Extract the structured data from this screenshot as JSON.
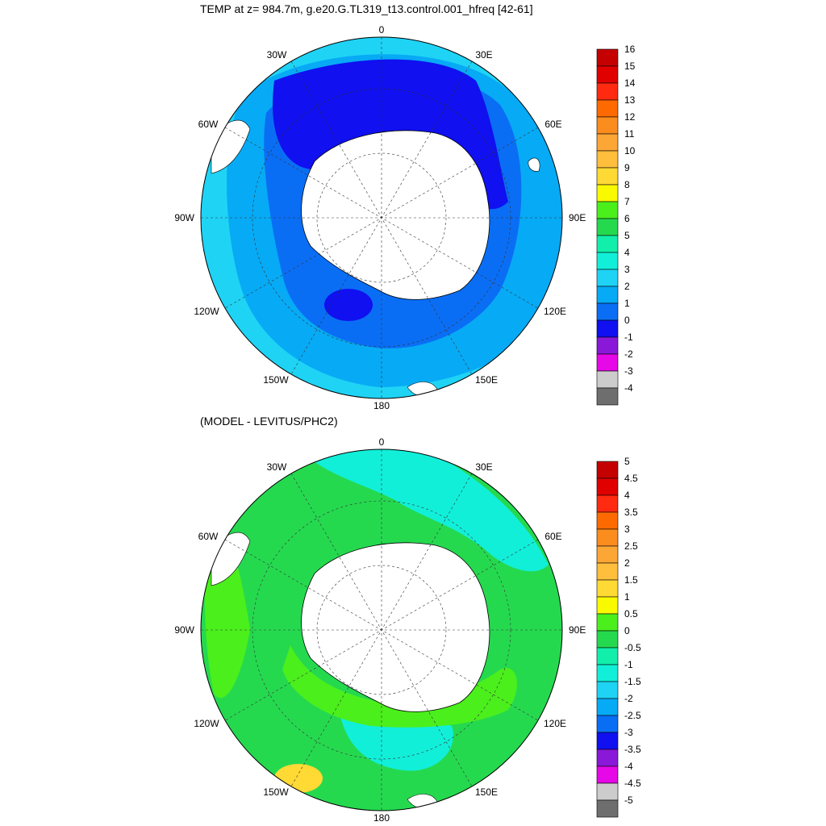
{
  "panels": [
    {
      "title": "TEMP at z= 984.7m, g.e20.G.TL319_t13.control.001_hfreq [42-61]",
      "colorbar": {
        "labels": [
          "16",
          "15",
          "14",
          "13",
          "12",
          "11",
          "10",
          "9",
          "8",
          "7",
          "6",
          "5",
          "4",
          "3",
          "2",
          "1",
          "0",
          "-1",
          "-2",
          "-3",
          "-4"
        ],
        "colors": [
          "#c40000",
          "#e00000",
          "#ff2a10",
          "#ff6a00",
          "#fb8c1e",
          "#fca636",
          "#ffbe3c",
          "#ffd934",
          "#f9f900",
          "#4bef1c",
          "#25d94f",
          "#11efab",
          "#11efd9",
          "#1fd3f5",
          "#07aaf5",
          "#0a6ef5",
          "#1010f0",
          "#8a18d8",
          "#e608e6",
          "#cccccc",
          "#6e6e6e"
        ]
      }
    },
    {
      "title": "(MODEL - LEVITUS/PHC2)",
      "colorbar": {
        "labels": [
          "5",
          "4.5",
          "4",
          "3.5",
          "3",
          "2.5",
          "2",
          "1.5",
          "1",
          "0.5",
          "0",
          "-0.5",
          "-1",
          "-1.5",
          "-2",
          "-2.5",
          "-3",
          "-3.5",
          "-4",
          "-4.5",
          "-5"
        ],
        "colors": [
          "#c40000",
          "#e00000",
          "#ff2a10",
          "#ff6a00",
          "#fb8c1e",
          "#fca636",
          "#ffbe3c",
          "#ffd934",
          "#f9f900",
          "#4bef1c",
          "#25d94f",
          "#11efab",
          "#11efd9",
          "#1fd3f5",
          "#07aaf5",
          "#0a6ef5",
          "#1010f0",
          "#8a18d8",
          "#e608e6",
          "#cccccc",
          "#6e6e6e"
        ]
      }
    }
  ],
  "longitude_labels": {
    "top": "0",
    "bottom": "180",
    "left": "90W",
    "right": "90E",
    "upper_left": "30W",
    "upper_right": "30E",
    "left_upper": "60W",
    "right_upper": "60E",
    "left_lower": "120W",
    "right_lower": "120E",
    "lower_left": "150W",
    "lower_right": "150E"
  },
  "colors": {
    "land": "#ffffff",
    "panel1_ocean_outer": "#1fd3f5",
    "panel1_ocean_mid": "#07aaf5",
    "panel1_ocean_inner": "#0a6ef5",
    "panel1_ocean_cold": "#1010f0",
    "panel2_ocean_main": "#25d94f",
    "panel2_ocean_warm": "#4bef1c",
    "panel2_ocean_cool": "#11efd9"
  }
}
